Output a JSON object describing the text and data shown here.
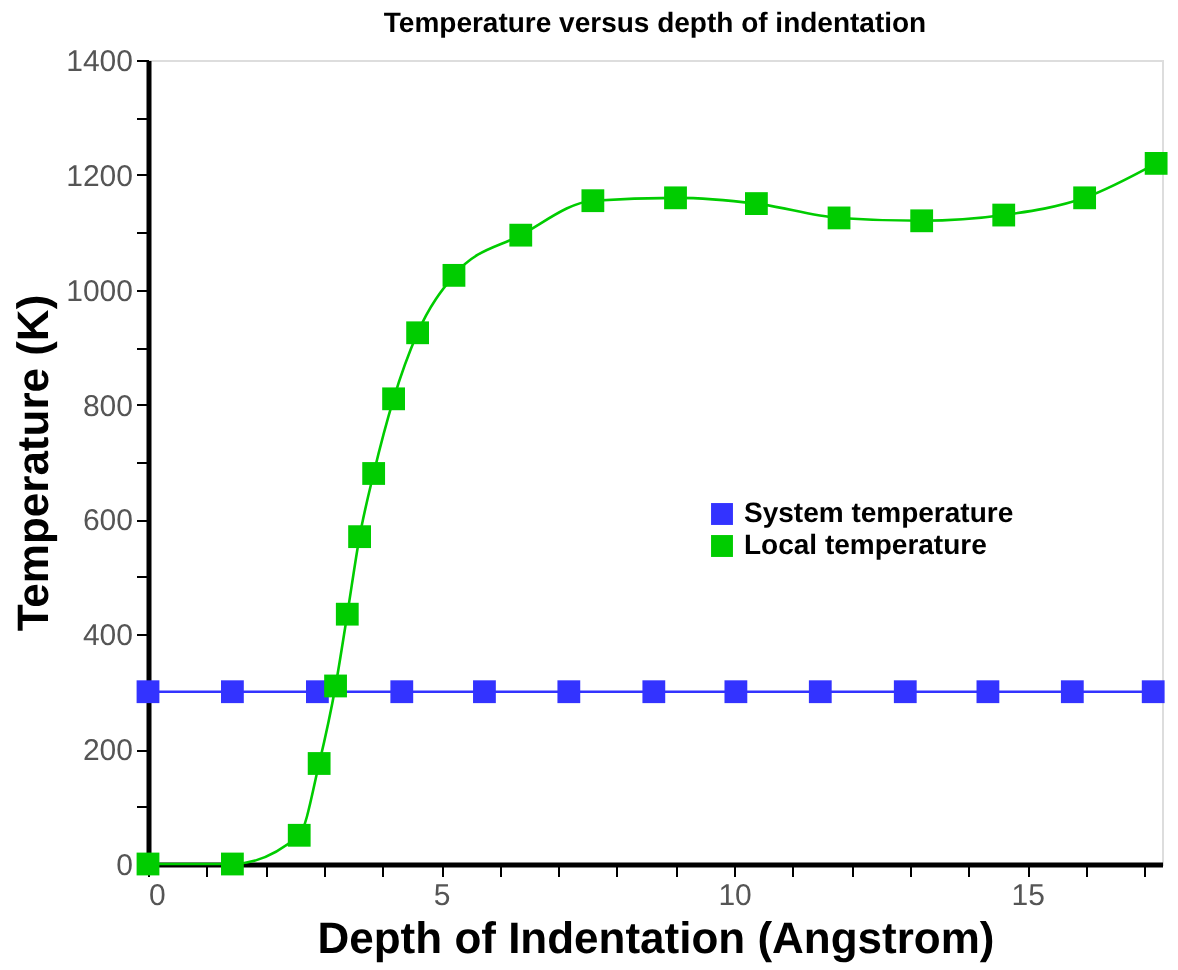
{
  "chart_data": {
    "type": "line",
    "title": "Temperature versus depth of indentation",
    "xlabel": "Depth of Indentation (Angstrom)",
    "ylabel": "Temperature (K)",
    "xlim": [
      0,
      17.3
    ],
    "ylim": [
      0,
      1400
    ],
    "xticks": [
      0,
      {
        "value": 1,
        "label": null
      },
      {
        "value": 2,
        "label": null
      },
      {
        "value": 3,
        "label": null
      },
      {
        "value": 4,
        "label": null
      },
      5,
      {
        "value": 6,
        "label": null
      },
      {
        "value": 7,
        "label": null
      },
      {
        "value": 8,
        "label": null
      },
      {
        "value": 9,
        "label": null
      },
      10,
      {
        "value": 11,
        "label": null
      },
      {
        "value": 12,
        "label": null
      },
      {
        "value": 13,
        "label": null
      },
      {
        "value": 14,
        "label": null
      },
      15,
      {
        "value": 16,
        "label": null
      },
      {
        "value": 17,
        "label": null
      }
    ],
    "yticks": [
      0,
      {
        "value": 100,
        "label": null
      },
      200,
      {
        "value": 300,
        "label": null
      },
      400,
      {
        "value": 500,
        "label": null
      },
      600,
      {
        "value": 700,
        "label": null
      },
      800,
      {
        "value": 900,
        "label": null
      },
      1000,
      {
        "value": 1100,
        "label": null
      },
      1200,
      {
        "value": 1300,
        "label": null
      },
      1400
    ],
    "grid": false,
    "legend": "right",
    "marker": "square",
    "line_style": "solid",
    "series": [
      {
        "name": "System temperature",
        "color": "#3333ff",
        "x": [
          0,
          1.44,
          2.89,
          4.33,
          5.74,
          7.18,
          8.63,
          10.03,
          11.47,
          12.92,
          14.33,
          15.77,
          17.15
        ],
        "values": [
          300,
          300,
          300,
          300,
          300,
          300,
          300,
          300,
          300,
          300,
          300,
          300,
          300
        ]
      },
      {
        "name": "Local temperature",
        "color": "#00cc00",
        "x": [
          0,
          1.44,
          2.58,
          2.92,
          3.2,
          3.4,
          3.61,
          3.85,
          4.19,
          4.6,
          5.22,
          6.36,
          7.59,
          9.0,
          10.38,
          11.79,
          13.2,
          14.6,
          15.98,
          17.2
        ],
        "values": [
          0,
          0,
          50,
          175,
          310,
          435,
          570,
          680,
          810,
          925,
          1025,
          1095,
          1155,
          1160,
          1150,
          1125,
          1120,
          1130,
          1160,
          1220
        ]
      }
    ]
  }
}
